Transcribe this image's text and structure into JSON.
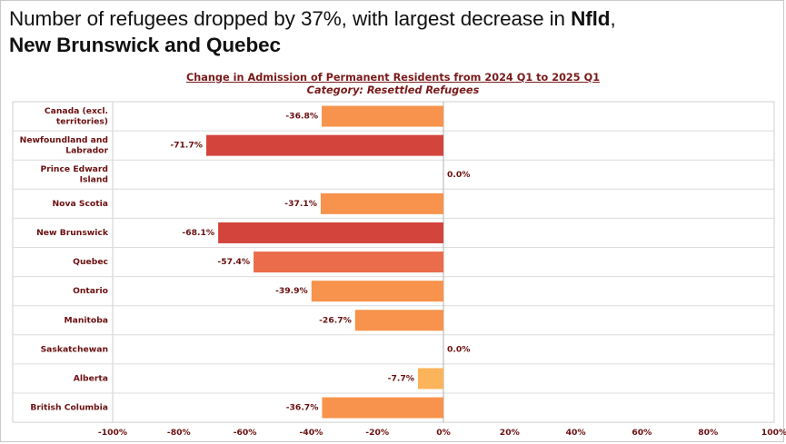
{
  "headline": {
    "normal_part": "Number of refugees dropped by 37%, with largest decrease in ",
    "bold_part_1": "Nfld",
    "comma": ",",
    "bold_part_2": "New Brunswick and Quebec"
  },
  "chart_data": {
    "type": "bar",
    "orientation": "horizontal",
    "title": "Change in Admission of Permanent Residents from 2024 Q1 to 2025 Q1",
    "subtitle": "Category: Resettled Refugees",
    "categories": [
      [
        "Canada (excl.",
        "territories)"
      ],
      [
        "Newfoundland and",
        "Labrador"
      ],
      [
        "Prince Edward",
        "Island"
      ],
      [
        "Nova Scotia"
      ],
      [
        "New Brunswick"
      ],
      [
        "Quebec"
      ],
      [
        "Ontario"
      ],
      [
        "Manitoba"
      ],
      [
        "Saskatchewan"
      ],
      [
        "Alberta"
      ],
      [
        "British Columbia"
      ]
    ],
    "values": [
      -36.8,
      -71.7,
      0.0,
      -37.1,
      -68.1,
      -57.4,
      -39.9,
      -26.7,
      0.0,
      -7.7,
      -36.7
    ],
    "data_labels": [
      "-36.8%",
      "-71.7%",
      "0.0%",
      "-37.1%",
      "-68.1%",
      "-57.4%",
      "-39.9%",
      "-26.7%",
      "0.0%",
      "-7.7%",
      "-36.7%"
    ],
    "xlim": [
      -100,
      100
    ],
    "xticks": [
      -100,
      -80,
      -60,
      -40,
      -20,
      0,
      20,
      40,
      60,
      80,
      100
    ],
    "xtick_labels": [
      "-100%",
      "-80%",
      "-60%",
      "-40%",
      "-20%",
      "0%",
      "20%",
      "40%",
      "60%",
      "80%",
      "100%"
    ],
    "grid": "horizontal row separators",
    "legend": "none",
    "color_scale": [
      "#fbb45a",
      "#f7934c",
      "#ea6c4a",
      "#d3443c"
    ],
    "text_color": "#6b0f0f"
  }
}
